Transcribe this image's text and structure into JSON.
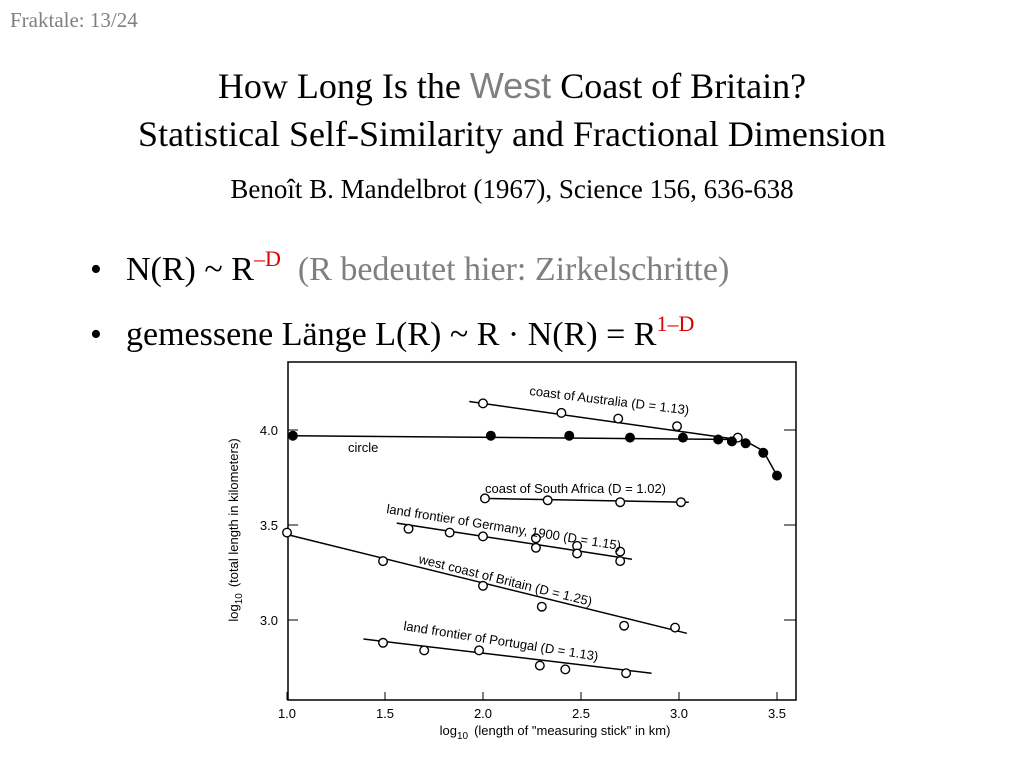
{
  "slide_counter": "Fraktale: 13/24",
  "title": {
    "part1": "How Long Is the ",
    "highlight": "West",
    "part2": " Coast of Britain?",
    "line2": "Statistical Self-Similarity and Fractional Dimension"
  },
  "citation": "Benoît B. Mandelbrot (1967), Science 156, 636-638",
  "bullets": [
    {
      "text": "N(R) ~ R",
      "sup": "–D",
      "note": "(R bedeutet hier: Zirkelschritte)"
    },
    {
      "text": "gemessene Länge L(R) ~ R · N(R) = R",
      "sup": "1–D"
    }
  ],
  "chart_data": {
    "type": "scatter",
    "xlabel": "log 10 (length of \"measuring stick\" in km)",
    "xlabel_parts": {
      "pre": "log",
      "sub": "10",
      "post": "(length of \"measuring stick\" in km)"
    },
    "ylabel_parts": {
      "pre": "log",
      "sub": "10",
      "post": "(total length in kilometers)"
    },
    "xlim": [
      1.0,
      3.6
    ],
    "ylim": [
      2.6,
      4.3
    ],
    "x_ticks": [
      "1.0",
      "1.5",
      "2.0",
      "2.5",
      "3.0",
      "3.5"
    ],
    "y_ticks": [
      "3.0",
      "3.5",
      "4.0"
    ],
    "series": [
      {
        "name": "coast of Australia (D = 1.13)",
        "marker": "open",
        "fit": [
          [
            1.93,
            4.15
          ],
          [
            3.3,
            3.95
          ]
        ],
        "points": [
          [
            2.0,
            4.14
          ],
          [
            2.4,
            4.09
          ],
          [
            2.69,
            4.06
          ],
          [
            2.99,
            4.02
          ],
          [
            3.3,
            3.96
          ]
        ]
      },
      {
        "name": "circle",
        "marker": "filled",
        "fit": [
          [
            1.03,
            3.97
          ],
          [
            3.3,
            3.95
          ],
          [
            3.36,
            3.93
          ],
          [
            3.43,
            3.89
          ],
          [
            3.5,
            3.76
          ]
        ],
        "points": [
          [
            1.03,
            3.97
          ],
          [
            2.04,
            3.97
          ],
          [
            2.44,
            3.97
          ],
          [
            2.75,
            3.96
          ],
          [
            3.02,
            3.96
          ],
          [
            3.2,
            3.95
          ],
          [
            3.27,
            3.94
          ],
          [
            3.34,
            3.93
          ],
          [
            3.43,
            3.88
          ],
          [
            3.5,
            3.76
          ]
        ]
      },
      {
        "name": "coast of South Africa (D = 1.02)",
        "marker": "open",
        "fit": [
          [
            2.0,
            3.64
          ],
          [
            3.05,
            3.62
          ]
        ],
        "points": [
          [
            2.01,
            3.64
          ],
          [
            2.33,
            3.63
          ],
          [
            2.7,
            3.62
          ],
          [
            3.01,
            3.62
          ]
        ]
      },
      {
        "name": "land frontier of Germany, 1900 (D = 1.15)",
        "marker": "open",
        "fit": [
          [
            1.56,
            3.51
          ],
          [
            2.76,
            3.32
          ]
        ],
        "points": [
          [
            1.62,
            3.48
          ],
          [
            1.83,
            3.46
          ],
          [
            2.0,
            3.44
          ],
          [
            2.27,
            3.43
          ],
          [
            2.27,
            3.38
          ],
          [
            2.48,
            3.39
          ],
          [
            2.48,
            3.35
          ],
          [
            2.7,
            3.36
          ],
          [
            2.7,
            3.31
          ]
        ]
      },
      {
        "name": "west coast of Britain (D = 1.25)",
        "marker": "open",
        "fit": [
          [
            1.0,
            3.45
          ],
          [
            3.04,
            2.93
          ]
        ],
        "points": [
          [
            1.0,
            3.46
          ],
          [
            1.49,
            3.31
          ],
          [
            2.0,
            3.18
          ],
          [
            2.3,
            3.07
          ],
          [
            2.72,
            2.97
          ],
          [
            2.98,
            2.96
          ]
        ]
      },
      {
        "name": "land frontier of Portugal (D = 1.13)",
        "marker": "open",
        "fit": [
          [
            1.39,
            2.9
          ],
          [
            2.86,
            2.72
          ]
        ],
        "points": [
          [
            1.49,
            2.88
          ],
          [
            1.7,
            2.84
          ],
          [
            1.98,
            2.84
          ],
          [
            2.29,
            2.76
          ],
          [
            2.42,
            2.74
          ],
          [
            2.73,
            2.72
          ]
        ]
      }
    ]
  }
}
